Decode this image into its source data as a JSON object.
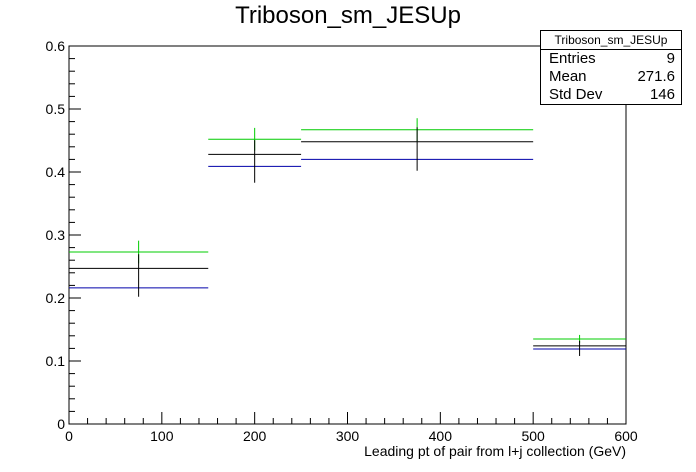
{
  "chart_data": {
    "type": "histogram",
    "title": "Triboson_sm_JESUp",
    "xlabel": "Leading pt of pair from l+j collection (GeV)",
    "ylabel": "",
    "xlim": [
      0,
      600
    ],
    "ylim": [
      0,
      0.6
    ],
    "x_ticks": [
      0,
      100,
      200,
      300,
      400,
      500,
      600
    ],
    "x_tick_labels": [
      "0",
      "100",
      "200",
      "300",
      "400",
      "500",
      "600"
    ],
    "y_ticks": [
      0,
      0.1,
      0.2,
      0.3,
      0.4,
      0.5,
      0.6
    ],
    "y_tick_labels": [
      "0",
      "0.1",
      "0.2",
      "0.3",
      "0.4",
      "0.5",
      "0.6"
    ],
    "grid": false,
    "bins": [
      {
        "low": 0,
        "high": 150,
        "center": 75
      },
      {
        "low": 150,
        "high": 250,
        "center": 200
      },
      {
        "low": 250,
        "high": 500,
        "center": 375
      },
      {
        "low": 500,
        "high": 600,
        "center": 550
      }
    ],
    "series": [
      {
        "color": "#00cc00",
        "values": [
          0.273,
          0.452,
          0.467,
          0.135
        ]
      },
      {
        "color": "#000000",
        "values": [
          0.247,
          0.428,
          0.448,
          0.124
        ]
      },
      {
        "color": "#0000aa",
        "values": [
          0.216,
          0.409,
          0.42,
          0.119
        ]
      }
    ],
    "errors": [
      0.045,
      0.045,
      0.046,
      0.016
    ],
    "stats": {
      "title": "Triboson_sm_JESUp",
      "rows": [
        {
          "label": "Entries",
          "value": "9"
        },
        {
          "label": "Mean",
          "value": "271.6"
        },
        {
          "label": "Std Dev",
          "value": "146"
        }
      ]
    }
  }
}
